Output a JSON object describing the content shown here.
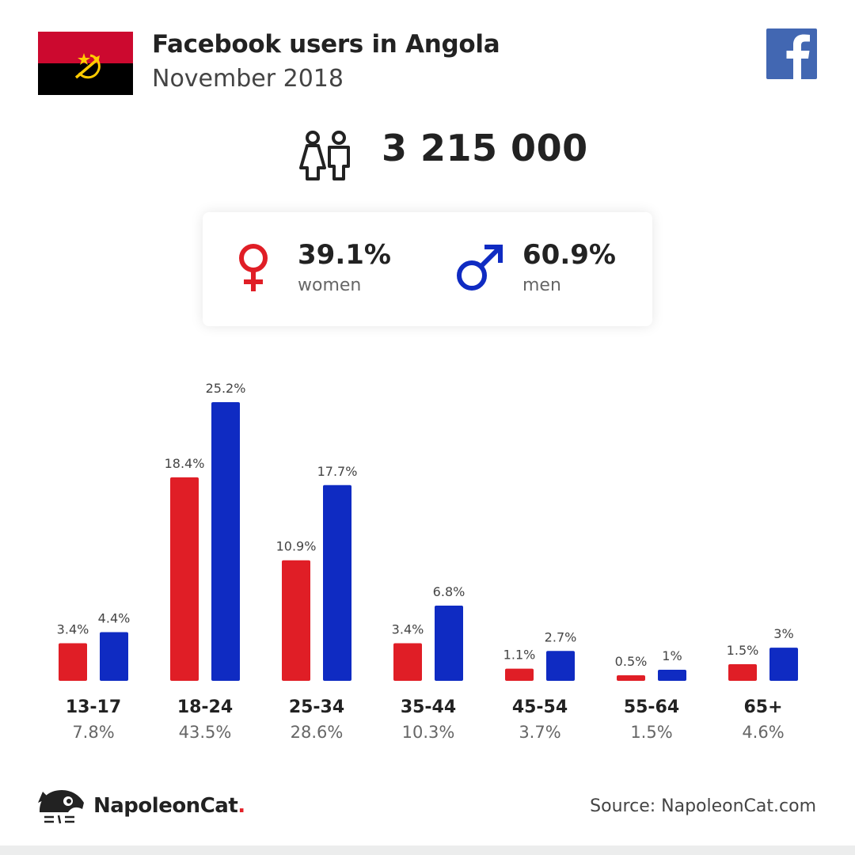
{
  "header": {
    "title": "Facebook users in Angola",
    "subtitle": "November 2018"
  },
  "total": {
    "value": "3 215 000",
    "icon": "people-icon"
  },
  "gender": {
    "women": {
      "pct": "39.1%",
      "label": "women",
      "icon": "female-symbol-icon",
      "color": "#e01e26"
    },
    "men": {
      "pct": "60.9%",
      "label": "men",
      "icon": "male-symbol-icon",
      "color": "#0f2bc2"
    }
  },
  "colors": {
    "women": "#e01e26",
    "men": "#0f2bc2",
    "facebook": "#4267b2",
    "flag_red": "#cc092f",
    "flag_black": "#000000",
    "flag_emblem": "#ffcb00"
  },
  "chart_data": {
    "type": "bar",
    "categories": [
      "13-17",
      "18-24",
      "25-34",
      "35-44",
      "45-54",
      "55-64",
      "65+"
    ],
    "category_totals": [
      "7.8%",
      "43.5%",
      "28.6%",
      "10.3%",
      "3.7%",
      "1.5%",
      "4.6%"
    ],
    "series": [
      {
        "values": [
          3.4,
          18.4,
          10.9,
          3.4,
          1.1,
          0.5,
          1.5
        ],
        "labels": [
          "3.4%",
          "18.4%",
          "10.9%",
          "3.4%",
          "1.1%",
          "0.5%",
          "1.5%"
        ]
      },
      {
        "values": [
          4.4,
          25.2,
          17.7,
          6.8,
          2.7,
          1,
          3
        ],
        "labels": [
          "4.4%",
          "25.2%",
          "17.7%",
          "6.8%",
          "2.7%",
          "1%",
          "3%"
        ]
      }
    ],
    "ylim": [
      0,
      25.2
    ],
    "grid": false
  },
  "footer": {
    "brand": "NapoleonCat",
    "brand_dot": ".",
    "logo_icon": "napoleoncat-logo-icon",
    "source": "Source: NapoleonCat.com"
  }
}
